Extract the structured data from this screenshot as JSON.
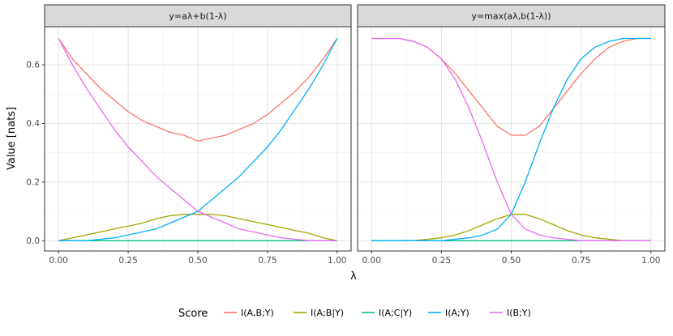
{
  "chart_data": {
    "type": "line",
    "ylabel": "Value [nats]",
    "xlabel": "λ",
    "x_ticks": [
      "0.00",
      "0.25",
      "0.50",
      "0.75",
      "1.00"
    ],
    "y_ticks": [
      "0.0",
      "0.2",
      "0.4",
      "0.6"
    ],
    "xlim": [
      -0.05,
      1.05
    ],
    "ylim": [
      -0.035,
      0.73
    ],
    "grid": true,
    "legend_position": "bottom",
    "legend_title": "Score",
    "panels": [
      {
        "title": "y=aλ+b(1-λ)",
        "x": [
          0,
          0.05,
          0.1,
          0.15,
          0.2,
          0.25,
          0.3,
          0.35,
          0.4,
          0.45,
          0.5,
          0.55,
          0.6,
          0.65,
          0.7,
          0.75,
          0.8,
          0.85,
          0.9,
          0.95,
          1.0
        ],
        "series": [
          {
            "name": "I(A,B;Y)",
            "color": "#F8766D",
            "values": [
              0.69,
              0.62,
              0.57,
              0.52,
              0.48,
              0.44,
              0.41,
              0.39,
              0.37,
              0.36,
              0.34,
              0.35,
              0.36,
              0.38,
              0.4,
              0.43,
              0.47,
              0.51,
              0.56,
              0.62,
              0.69
            ]
          },
          {
            "name": "I(A;B|Y)",
            "color": "#A3A500",
            "values": [
              0.0,
              0.01,
              0.02,
              0.03,
              0.04,
              0.05,
              0.06,
              0.075,
              0.085,
              0.09,
              0.09,
              0.09,
              0.085,
              0.075,
              0.065,
              0.055,
              0.045,
              0.035,
              0.025,
              0.01,
              0.0
            ]
          },
          {
            "name": "I(A;C|Y)",
            "color": "#00BF7D",
            "values": [
              0.0,
              0.0,
              0.0,
              0.0,
              0.0,
              0.0,
              0.0,
              0.0,
              0.0,
              0.0,
              0.0,
              0.0,
              0.0,
              0.0,
              0.0,
              0.0,
              0.0,
              0.0,
              0.0,
              0.0,
              0.0
            ]
          },
          {
            "name": "I(A;Y)",
            "color": "#00B0F6",
            "values": [
              0.0,
              0.0,
              0.0,
              0.005,
              0.01,
              0.02,
              0.03,
              0.04,
              0.06,
              0.08,
              0.1,
              0.14,
              0.18,
              0.22,
              0.27,
              0.32,
              0.38,
              0.45,
              0.52,
              0.6,
              0.69
            ]
          },
          {
            "name": "I(B;Y)",
            "color": "#E76BF3",
            "values": [
              0.69,
              0.6,
              0.52,
              0.45,
              0.38,
              0.32,
              0.27,
              0.22,
              0.18,
              0.14,
              0.1,
              0.08,
              0.06,
              0.04,
              0.03,
              0.02,
              0.01,
              0.005,
              0.0,
              0.0,
              0.0
            ]
          }
        ]
      },
      {
        "title": "y=max(aλ,b(1-λ))",
        "x": [
          0,
          0.05,
          0.1,
          0.15,
          0.2,
          0.25,
          0.3,
          0.35,
          0.4,
          0.45,
          0.5,
          0.55,
          0.6,
          0.65,
          0.7,
          0.75,
          0.8,
          0.85,
          0.9,
          0.95,
          1.0
        ],
        "series": [
          {
            "name": "I(A,B;Y)",
            "color": "#F8766D",
            "values": [
              0.69,
              0.69,
              0.69,
              0.68,
              0.66,
              0.62,
              0.57,
              0.51,
              0.45,
              0.39,
              0.36,
              0.36,
              0.39,
              0.45,
              0.51,
              0.57,
              0.62,
              0.66,
              0.68,
              0.69,
              0.69
            ]
          },
          {
            "name": "I(A;B|Y)",
            "color": "#A3A500",
            "values": [
              0.0,
              0.0,
              0.0,
              0.0,
              0.005,
              0.01,
              0.02,
              0.035,
              0.055,
              0.075,
              0.09,
              0.09,
              0.075,
              0.055,
              0.035,
              0.02,
              0.01,
              0.005,
              0.0,
              0.0,
              0.0
            ]
          },
          {
            "name": "I(A;C|Y)",
            "color": "#00BF7D",
            "values": [
              0.0,
              0.0,
              0.0,
              0.0,
              0.0,
              0.0,
              0.0,
              0.0,
              0.0,
              0.0,
              0.0,
              0.0,
              0.0,
              0.0,
              0.0,
              0.0,
              0.0,
              0.0,
              0.0,
              0.0,
              0.0
            ]
          },
          {
            "name": "I(A;Y)",
            "color": "#00B0F6",
            "values": [
              0.0,
              0.0,
              0.0,
              0.0,
              0.0,
              0.0,
              0.005,
              0.01,
              0.02,
              0.04,
              0.09,
              0.2,
              0.33,
              0.45,
              0.55,
              0.62,
              0.66,
              0.68,
              0.69,
              0.69,
              0.69
            ]
          },
          {
            "name": "I(B;Y)",
            "color": "#E76BF3",
            "values": [
              0.69,
              0.69,
              0.69,
              0.68,
              0.66,
              0.62,
              0.55,
              0.45,
              0.33,
              0.2,
              0.09,
              0.04,
              0.02,
              0.01,
              0.005,
              0.0,
              0.0,
              0.0,
              0.0,
              0.0,
              0.0
            ]
          }
        ]
      }
    ]
  }
}
